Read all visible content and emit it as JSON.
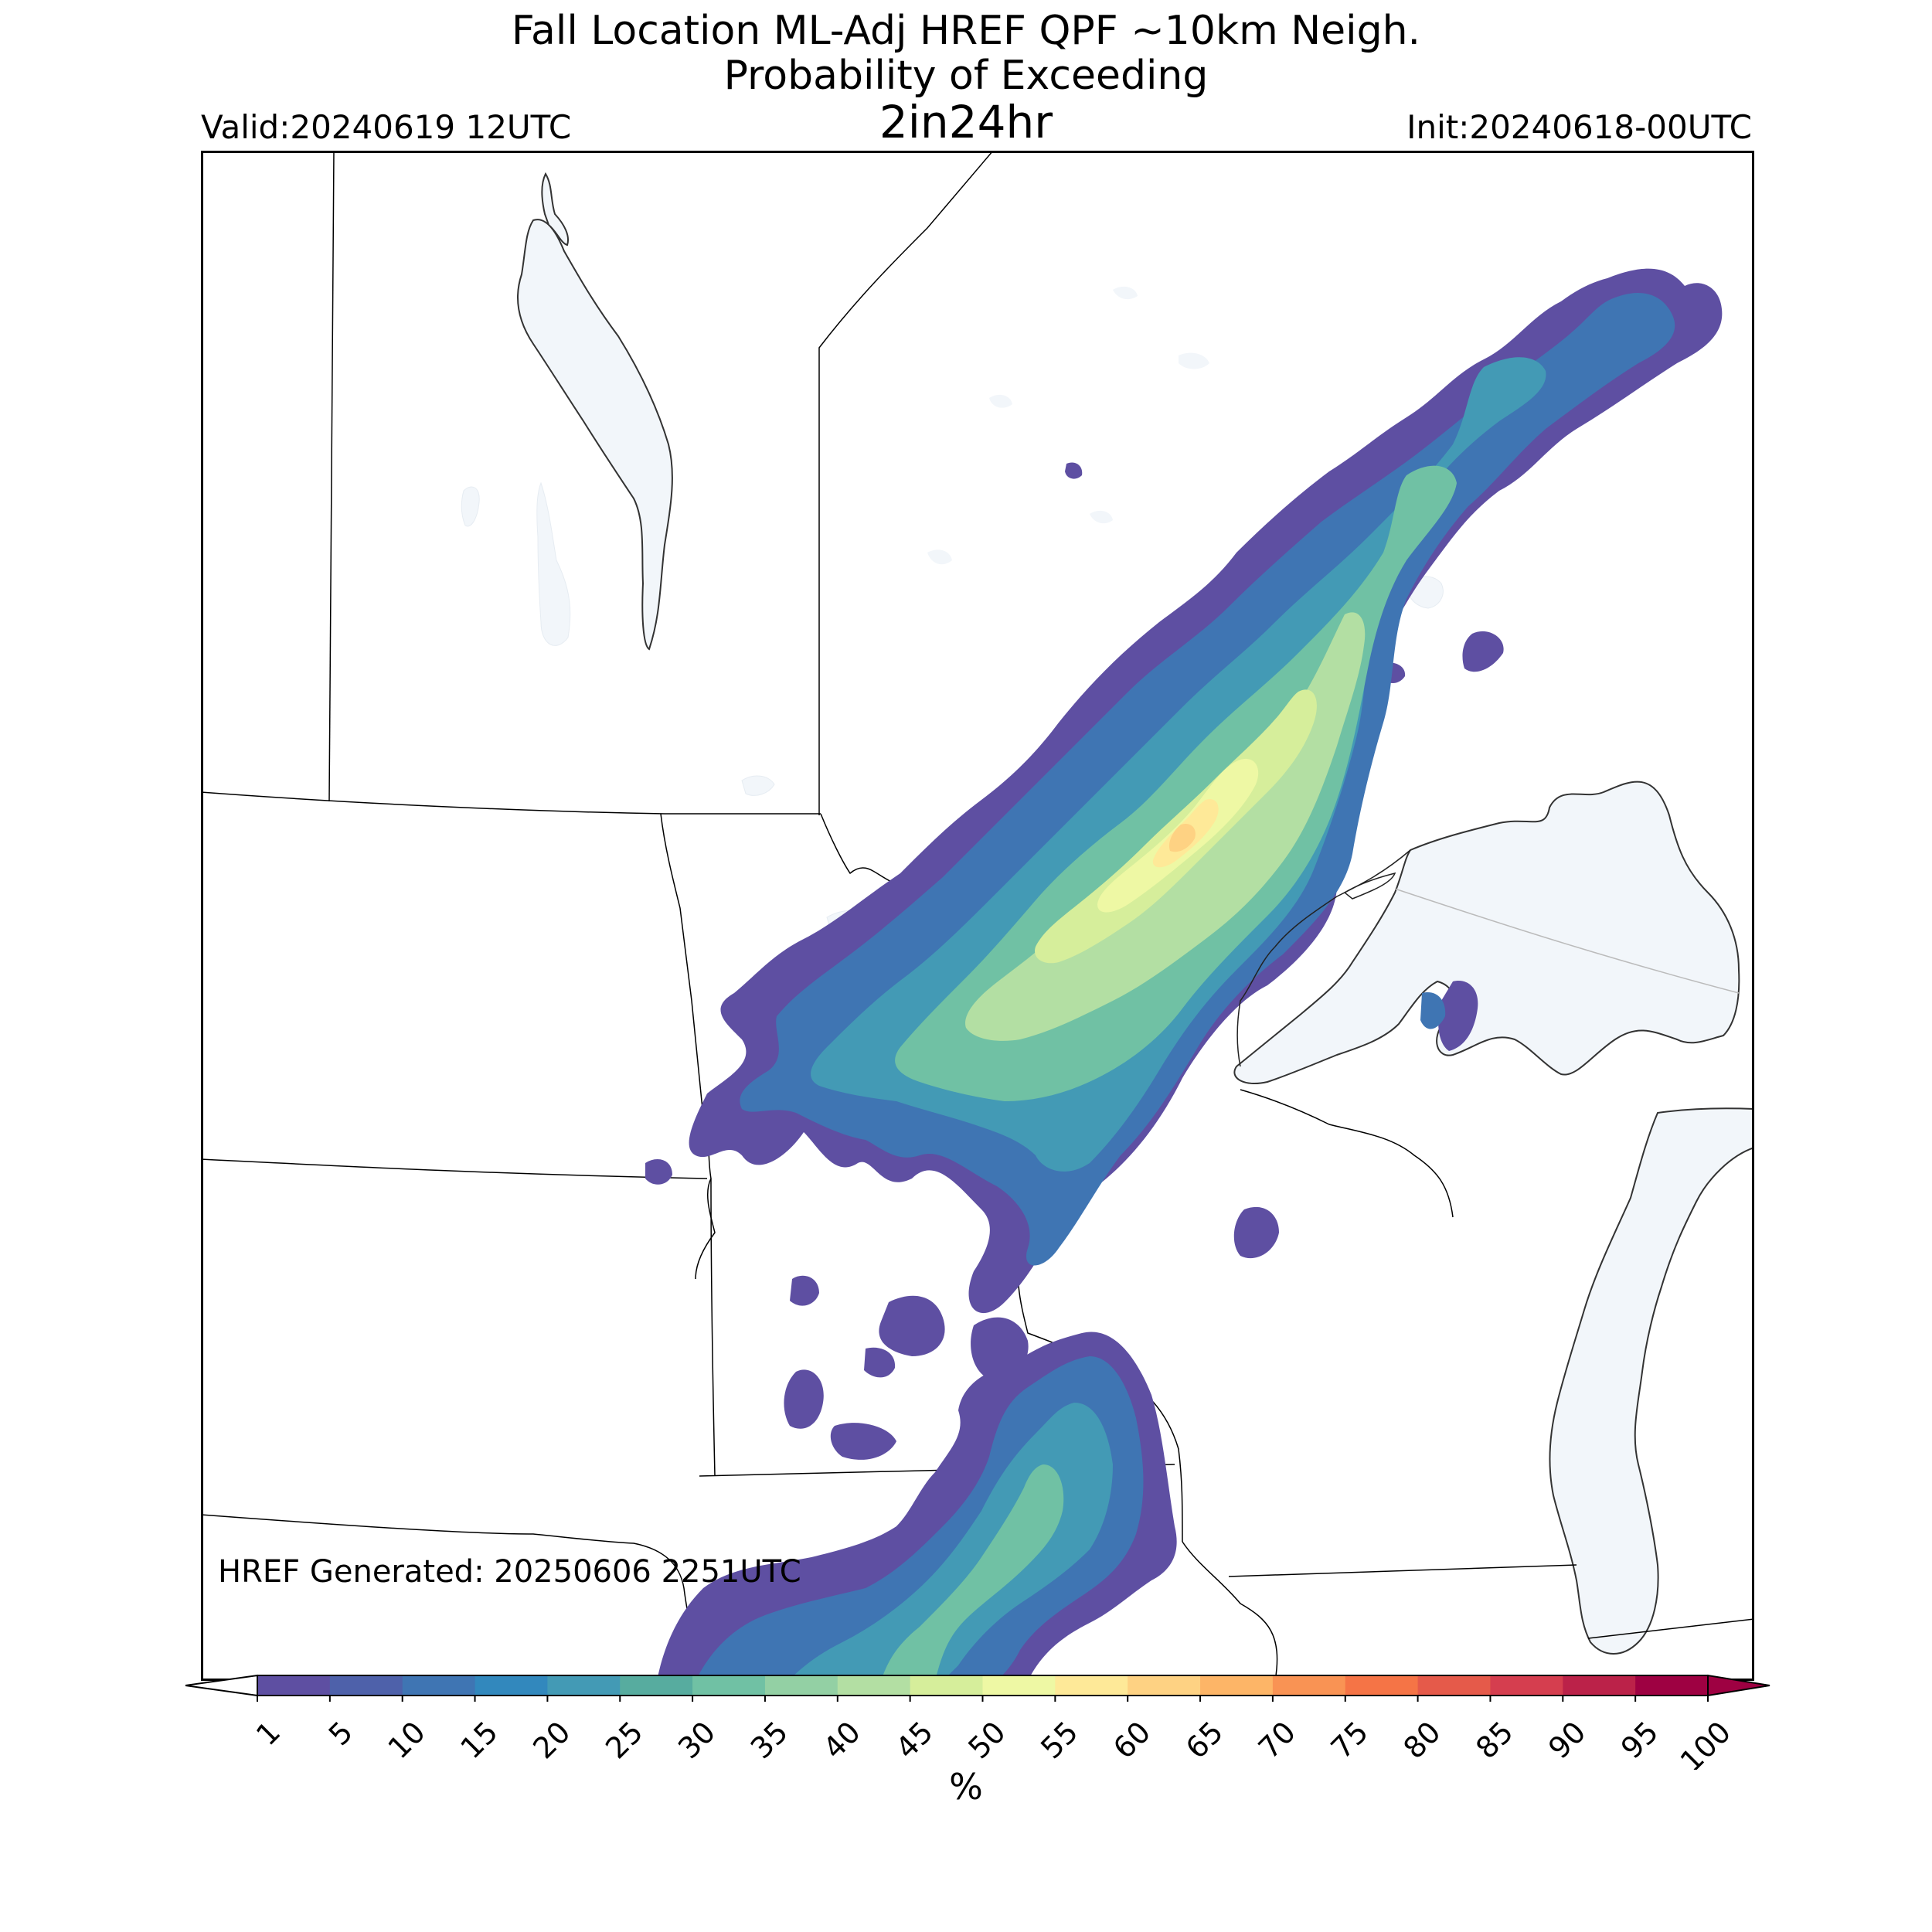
{
  "title": {
    "line1": "Fall Location ML-Adj HREF QPF ~10km Neigh.",
    "line2": "Probability of Exceeding",
    "line3": "2in24hr"
  },
  "valid_text": "Valid:20240619 12UTC",
  "init_text": "Init:20240618-00UTC",
  "generated_text": "HREF Generated: 20250606 2251UTC",
  "colorbar": {
    "levels": [
      1,
      5,
      10,
      15,
      20,
      25,
      30,
      35,
      40,
      45,
      50,
      55,
      60,
      65,
      70,
      75,
      80,
      85,
      90,
      95,
      100
    ],
    "colors": [
      "#5e4fa2",
      "#4e61aa",
      "#3f75b3",
      "#3288bd",
      "#439ab5",
      "#57ac9f",
      "#70c1a4",
      "#93d0a4",
      "#b3dfa3",
      "#d6ee9b",
      "#eef8a4",
      "#fee998",
      "#fed283",
      "#fdb567",
      "#f99354",
      "#f57446",
      "#e55a4a",
      "#d53e4f",
      "#bb2249",
      "#9e0142"
    ],
    "extend": "both",
    "unit": "%"
  },
  "colors": {
    "lake_fill": "#f2f6fa",
    "boundary": "#000000",
    "frame": "#000000"
  }
}
